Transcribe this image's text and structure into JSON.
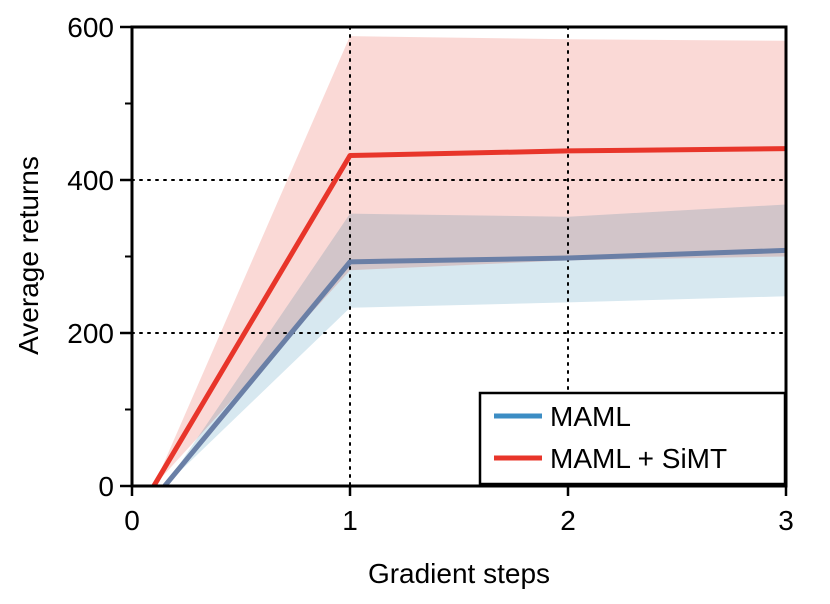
{
  "chart_data": {
    "type": "line",
    "title": "",
    "xlabel": "Gradient steps",
    "ylabel": "Average returns",
    "xlim": [
      0,
      3
    ],
    "ylim": [
      0,
      600
    ],
    "xticks": [
      0,
      1,
      2,
      3
    ],
    "xtick_labels": [
      "0",
      "1",
      "2",
      "3"
    ],
    "yticks": [
      0,
      200,
      400,
      600
    ],
    "ytick_labels": [
      "0",
      "200",
      "400",
      "600"
    ],
    "yminor_ticks": [
      100,
      300,
      500
    ],
    "grid": "dotted at x=1,2 and y=200,400",
    "legend_position": "bottom-right",
    "series": [
      {
        "name": "MAML",
        "color": "#6a7fa6",
        "legend_color": "#3c8dc4",
        "band_color": "#d7e8f0",
        "x": [
          0.15,
          1,
          2,
          3
        ],
        "y": [
          0,
          293,
          298,
          308
        ],
        "lower": [
          0,
          233,
          240,
          248
        ],
        "upper": [
          0,
          356,
          352,
          368
        ]
      },
      {
        "name": "MAML + SiMT",
        "color": "#e8352a",
        "legend_color": "#e8352a",
        "band_color": "#f9d2cf",
        "x": [
          0.1,
          1,
          2,
          3
        ],
        "y": [
          0,
          432,
          438,
          441
        ],
        "lower": [
          0,
          282,
          295,
          300
        ],
        "upper": [
          0,
          588,
          584,
          582
        ]
      }
    ]
  }
}
